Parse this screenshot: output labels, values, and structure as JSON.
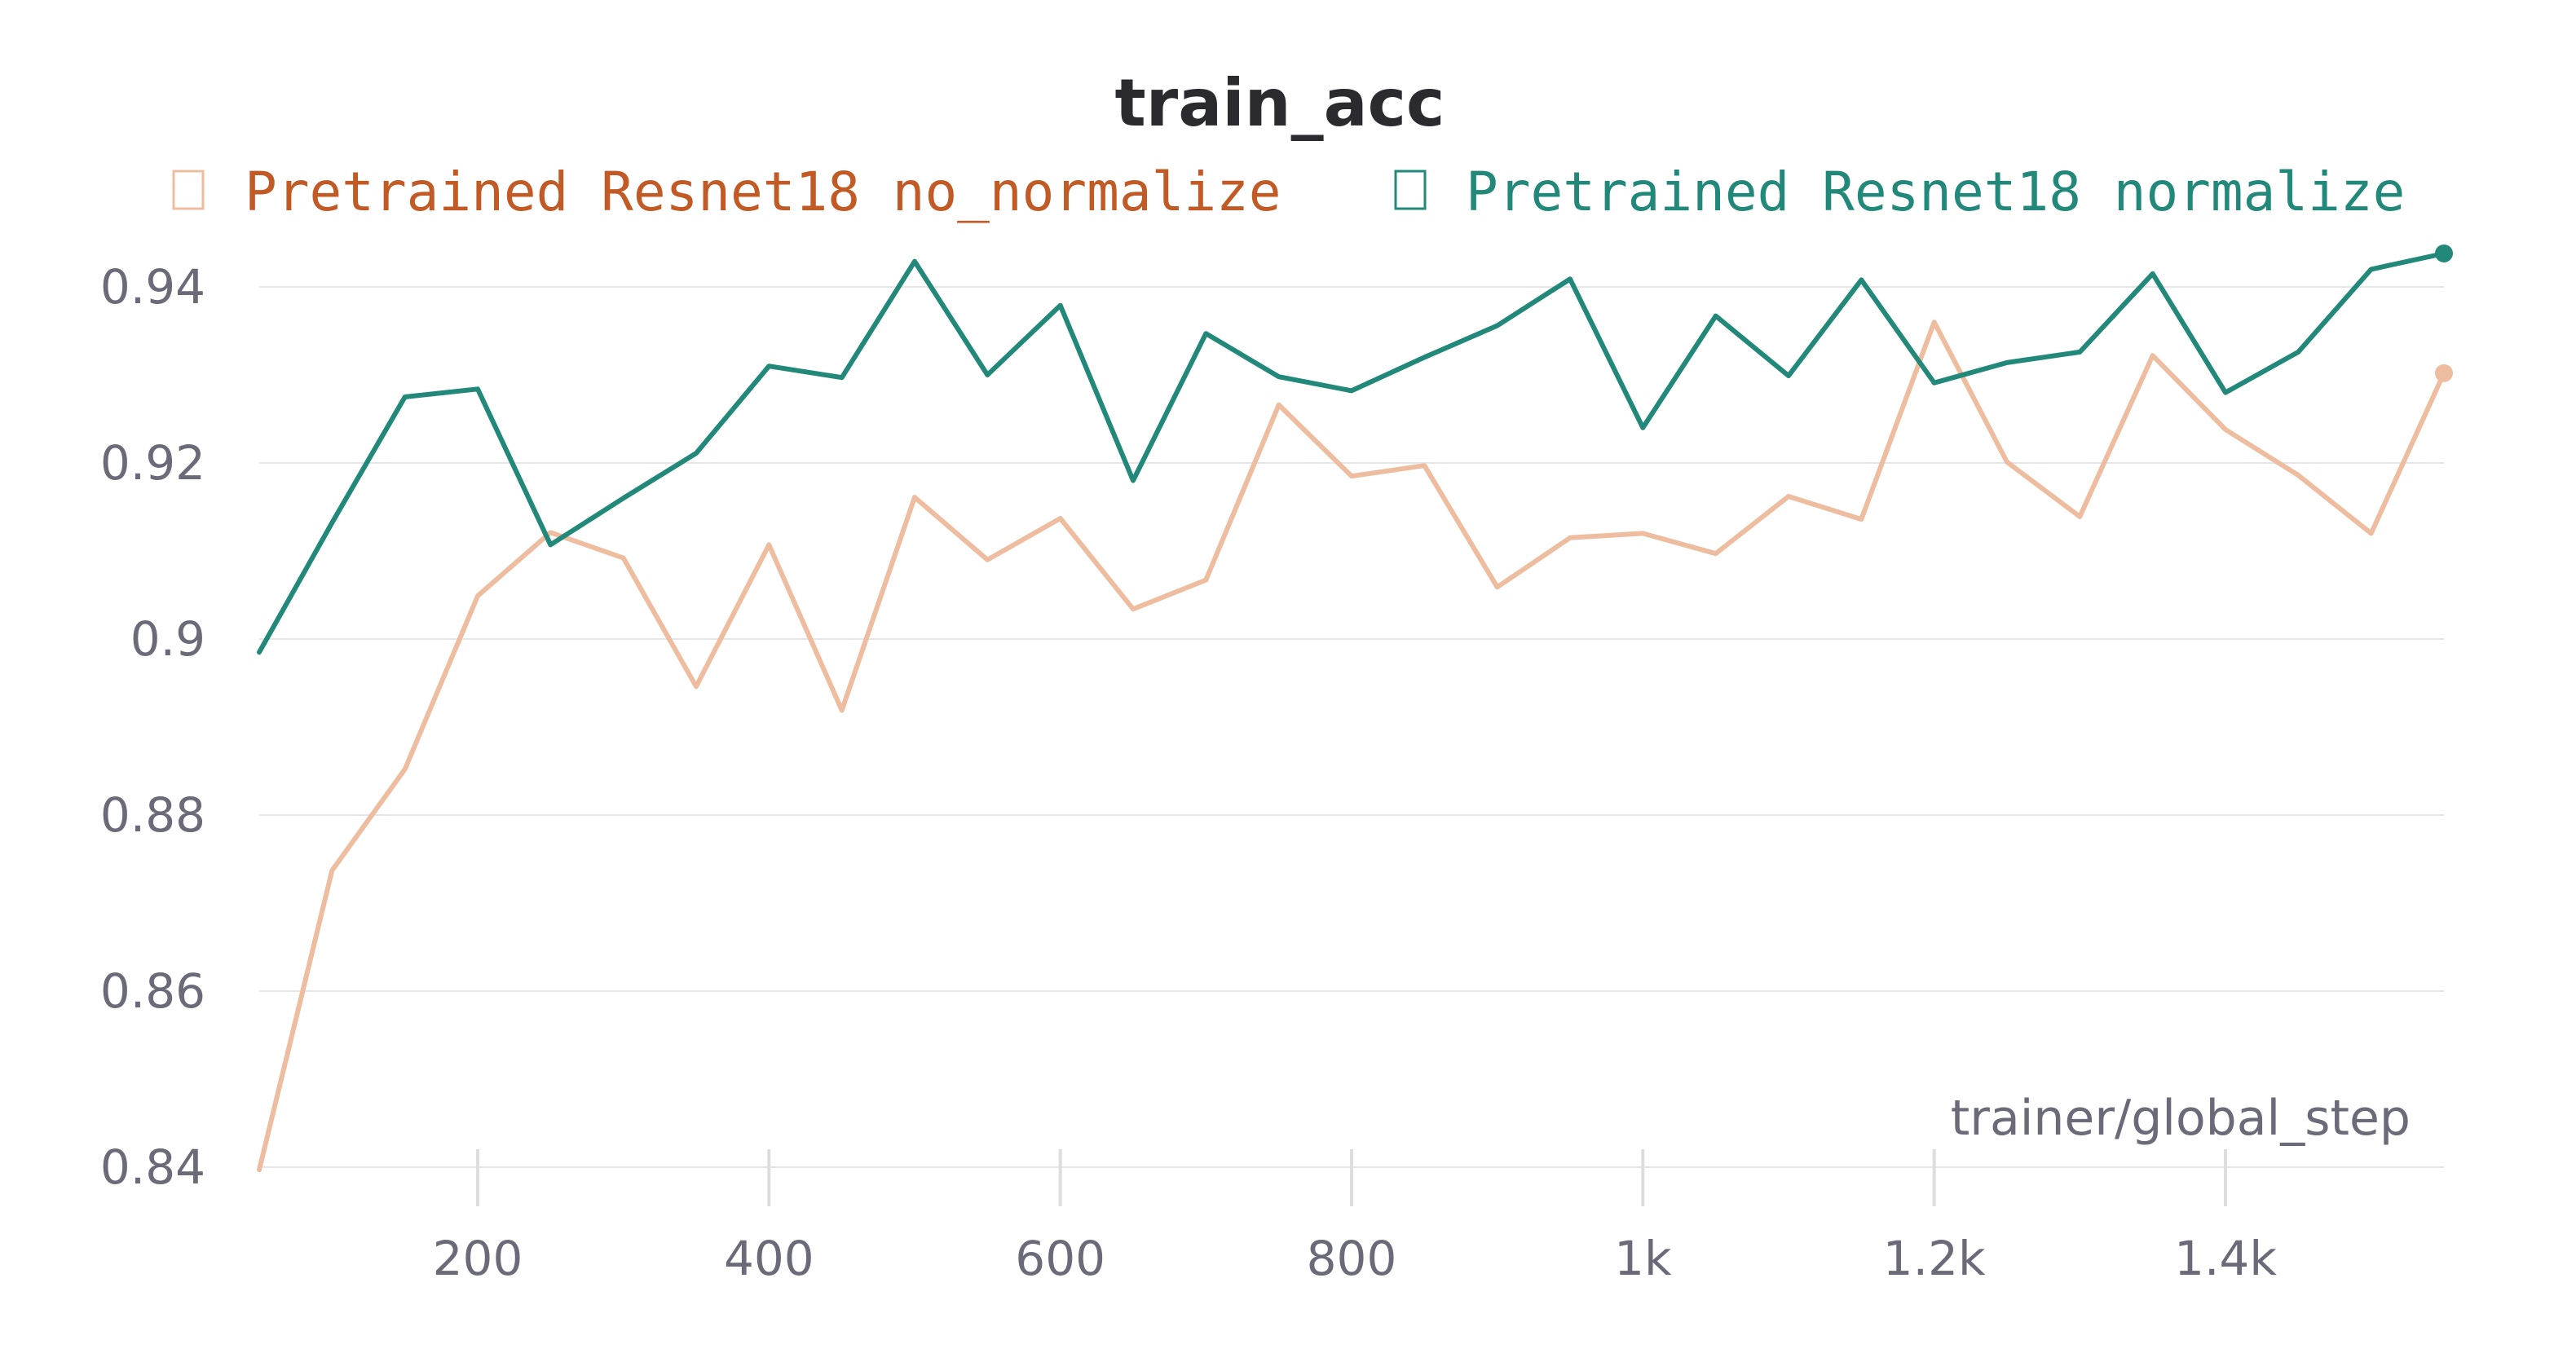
{
  "chart_data": {
    "type": "line",
    "title": "train_acc",
    "xlabel": "trainer/global_step",
    "ylabel": "",
    "xlim": [
      50,
      1550
    ],
    "ylim": [
      0.84,
      0.95
    ],
    "grid": true,
    "legend_position": "top",
    "x_ticks": [
      {
        "value": 200,
        "label": "200"
      },
      {
        "value": 400,
        "label": "400"
      },
      {
        "value": 600,
        "label": "600"
      },
      {
        "value": 800,
        "label": "800"
      },
      {
        "value": 1000,
        "label": "1k"
      },
      {
        "value": 1200,
        "label": "1.2k"
      },
      {
        "value": 1400,
        "label": "1.4k"
      }
    ],
    "y_ticks": [
      {
        "value": 0.84,
        "label": "0.84"
      },
      {
        "value": 0.86,
        "label": "0.86"
      },
      {
        "value": 0.88,
        "label": "0.88"
      },
      {
        "value": 0.9,
        "label": "0.9"
      },
      {
        "value": 0.92,
        "label": "0.92"
      },
      {
        "value": 0.94,
        "label": "0.94"
      }
    ],
    "x": [
      50,
      100,
      150,
      200,
      250,
      300,
      350,
      400,
      450,
      500,
      550,
      600,
      650,
      700,
      750,
      800,
      850,
      900,
      950,
      1000,
      1050,
      1100,
      1150,
      1200,
      1250,
      1300,
      1350,
      1400,
      1450,
      1500,
      1550
    ],
    "series": [
      {
        "name": "Pretrained Resnet18 no_normalize",
        "color": "#eebda0",
        "legend_color": "#c25a25",
        "values": [
          0.8397,
          0.8737,
          0.8852,
          0.9049,
          0.9121,
          0.9092,
          0.8946,
          0.9107,
          0.8919,
          0.9161,
          0.909,
          0.9137,
          0.9034,
          0.9067,
          0.9266,
          0.9185,
          0.9197,
          0.9059,
          0.9115,
          0.912,
          0.9097,
          0.9162,
          0.9136,
          0.936,
          0.9201,
          0.9139,
          0.9322,
          0.9238,
          0.9186,
          0.912,
          0.9302
        ]
      },
      {
        "name": "Pretrained Resnet18 normalize",
        "color": "#22897a",
        "legend_color": "#22897a",
        "values": [
          0.8985,
          0.9132,
          0.9275,
          0.9284,
          0.9107,
          0.916,
          0.9211,
          0.931,
          0.9297,
          0.9429,
          0.93,
          0.9379,
          0.918,
          0.9347,
          0.9298,
          0.9282,
          0.932,
          0.9356,
          0.9409,
          0.924,
          0.9367,
          0.9299,
          0.9408,
          0.9291,
          0.9314,
          0.9326,
          0.9415,
          0.928,
          0.9326,
          0.942,
          0.9438
        ]
      }
    ]
  }
}
